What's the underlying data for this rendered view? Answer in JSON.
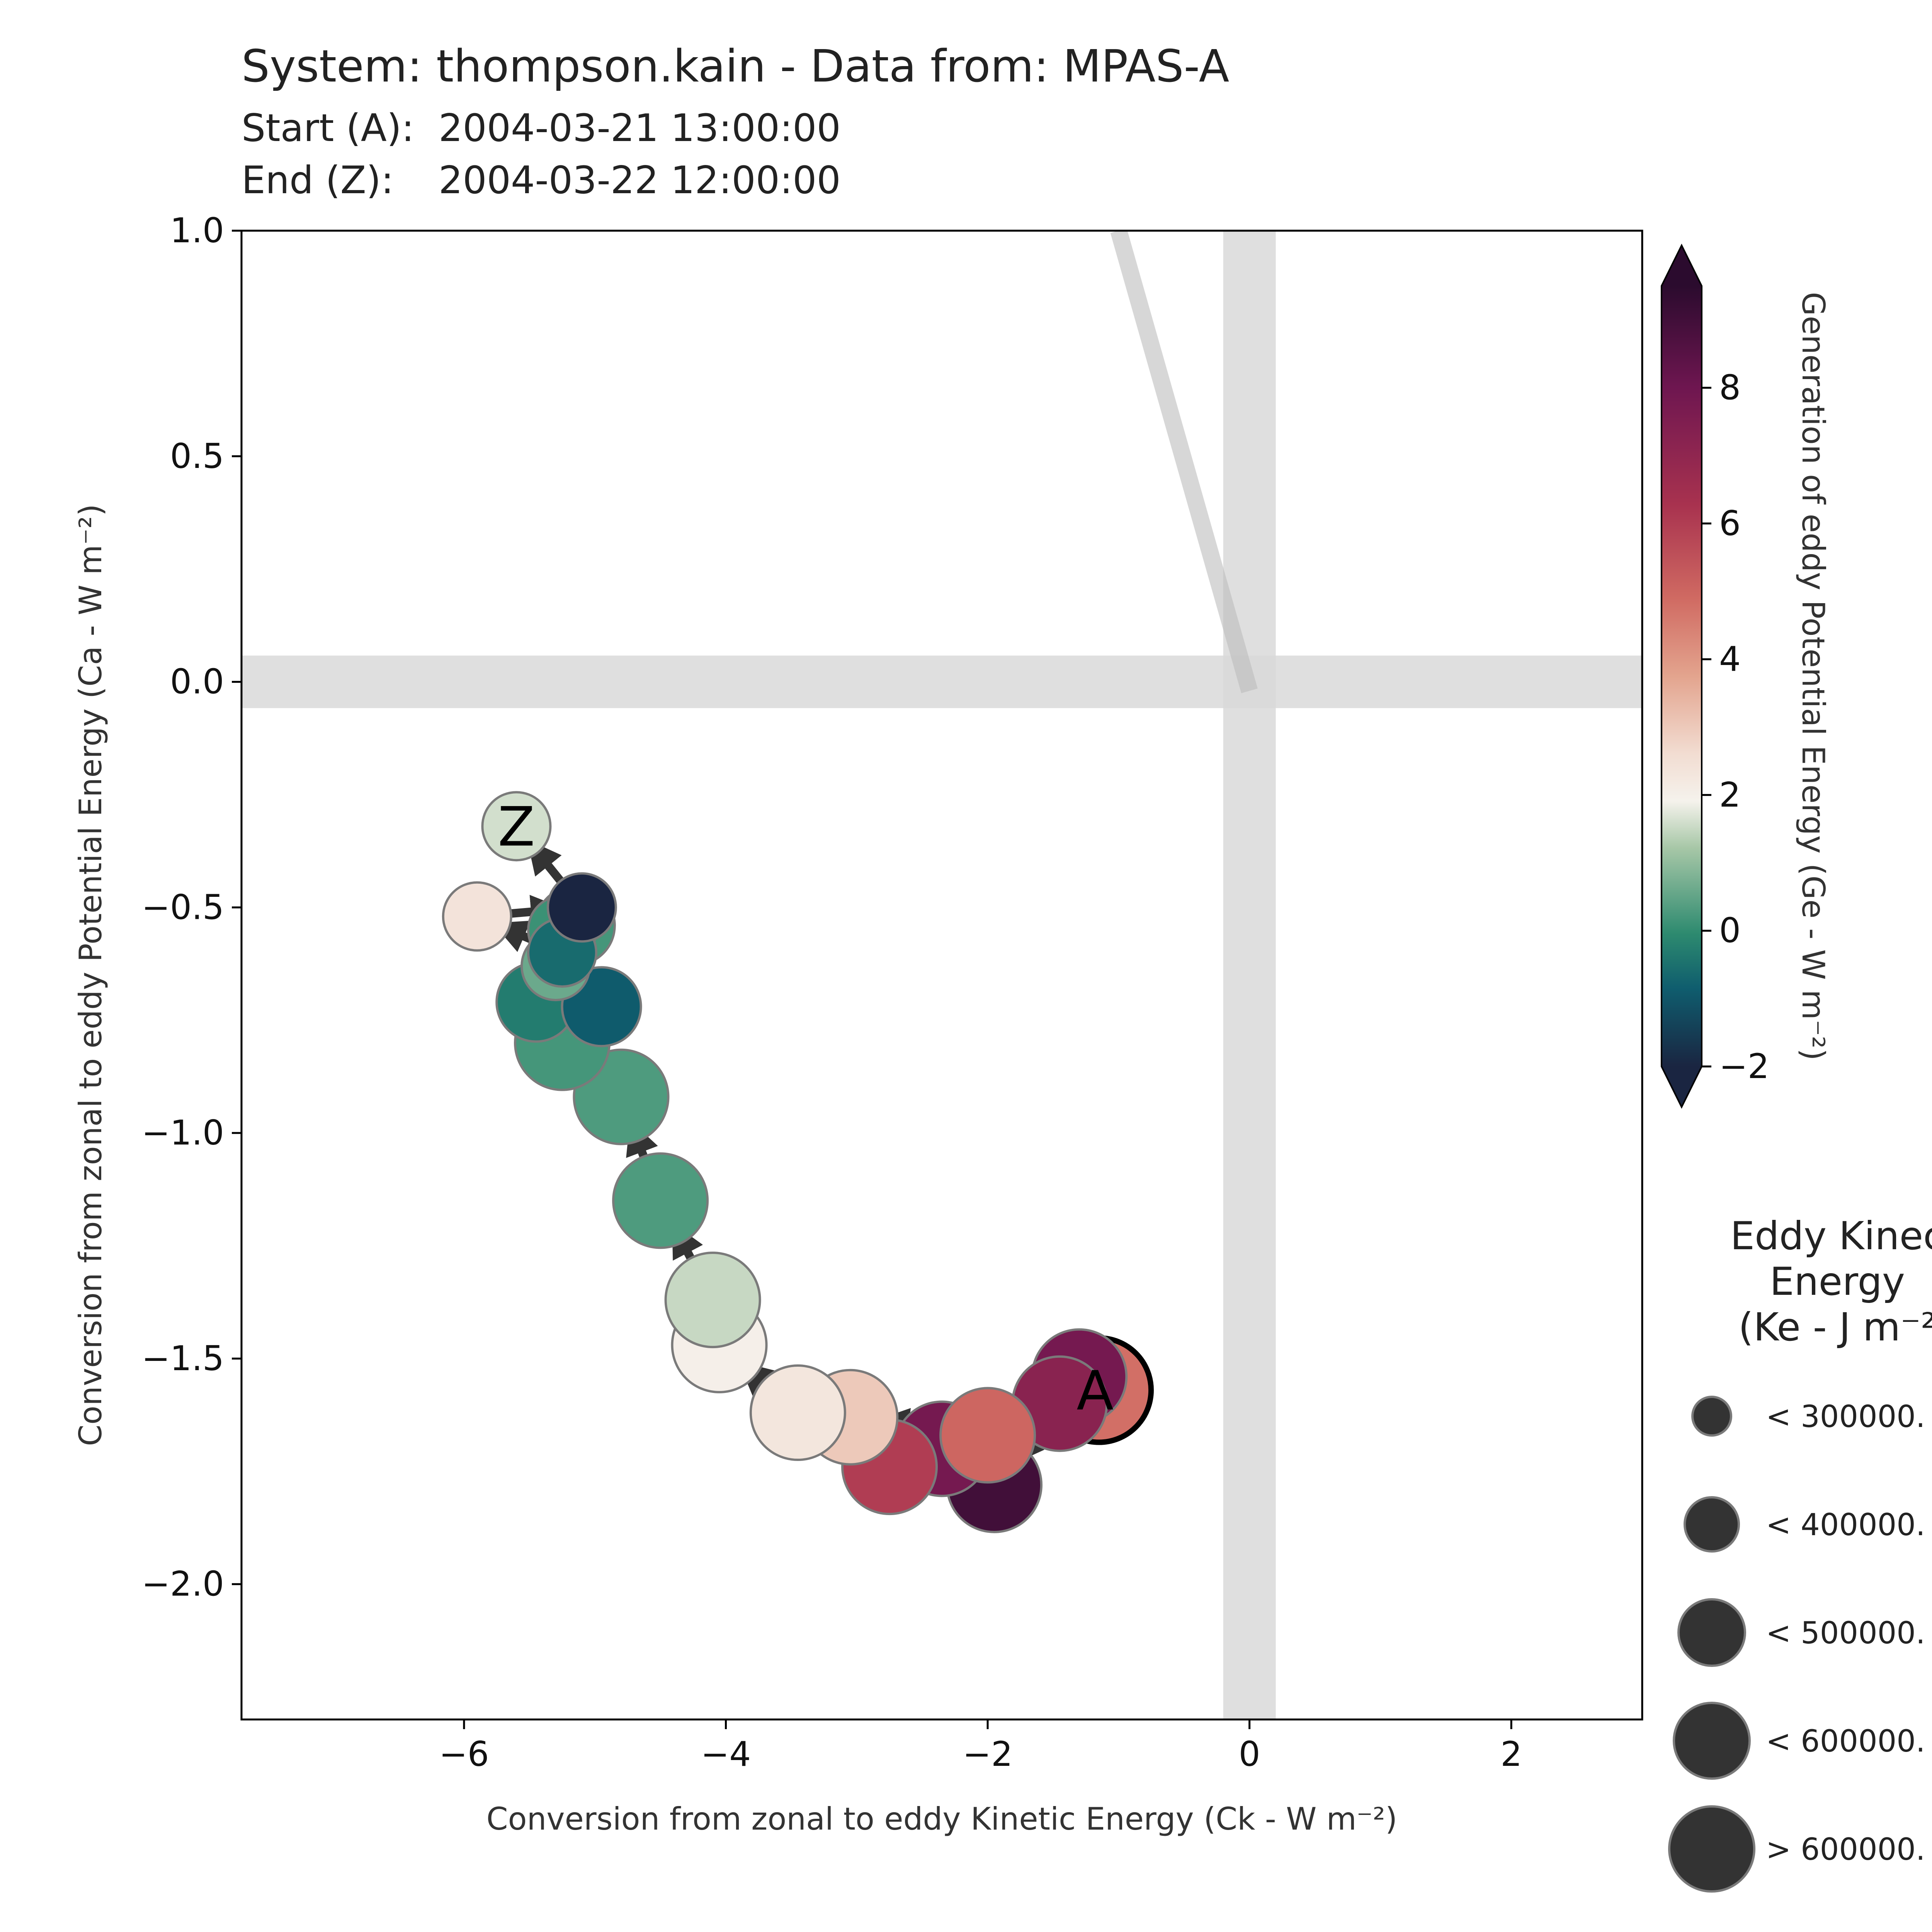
{
  "header": {
    "title": "System: thompson.kain - Data from: MPAS-A",
    "start_label": "Start (A):",
    "start_value": "2004-03-21 13:00:00",
    "end_label": "End (Z):",
    "end_value": "2004-03-22 12:00:00"
  },
  "chart_data": {
    "type": "scatter",
    "xlabel": "Conversion from zonal to eddy Kinetic Energy (Ck -  W m⁻²)",
    "ylabel": "Conversion from zonal to eddy Potential Energy (Ca -  W m⁻²)",
    "xlim": [
      -7.7,
      3.0
    ],
    "ylim": [
      -2.3,
      1.0
    ],
    "xticks": [
      -6,
      -4,
      -2,
      0,
      2
    ],
    "xtick_labels": [
      "−6",
      "−4",
      "−2",
      "0",
      "2"
    ],
    "yticks": [
      1.0,
      0.5,
      0.0,
      -0.5,
      -1.0,
      -1.5,
      -2.0
    ],
    "ytick_labels": [
      "1.0",
      "0.5",
      "0.0",
      "−0.5",
      "−1.0",
      "−1.5",
      "−2.0"
    ],
    "reference_bands": {
      "x": 0,
      "y": 0
    },
    "trend_line": {
      "x": [
        -1.0,
        0.0
      ],
      "y": [
        1.0,
        -0.02
      ]
    },
    "start_marker": "A",
    "end_marker": "Z",
    "points": [
      {
        "x": -1.15,
        "y": -1.57,
        "ge": 4.8,
        "size_class": 4
      },
      {
        "x": -1.3,
        "y": -1.54,
        "ge": 7.8,
        "size_class": 3
      },
      {
        "x": -1.45,
        "y": -1.6,
        "ge": 7.2,
        "size_class": 3
      },
      {
        "x": -1.95,
        "y": -1.78,
        "ge": 9.0,
        "size_class": 3
      },
      {
        "x": -2.35,
        "y": -1.7,
        "ge": 7.8,
        "size_class": 3
      },
      {
        "x": -2.75,
        "y": -1.74,
        "ge": 6.0,
        "size_class": 3
      },
      {
        "x": -2.0,
        "y": -1.67,
        "ge": 5.0,
        "size_class": 3
      },
      {
        "x": -3.05,
        "y": -1.63,
        "ge": 3.0,
        "size_class": 3
      },
      {
        "x": -3.45,
        "y": -1.62,
        "ge": 2.3,
        "size_class": 3
      },
      {
        "x": -4.05,
        "y": -1.47,
        "ge": 2.0,
        "size_class": 3
      },
      {
        "x": -4.1,
        "y": -1.37,
        "ge": 1.5,
        "size_class": 3
      },
      {
        "x": -4.5,
        "y": -1.15,
        "ge": 0.3,
        "size_class": 3
      },
      {
        "x": -4.8,
        "y": -0.92,
        "ge": 0.3,
        "size_class": 3
      },
      {
        "x": -5.25,
        "y": -0.8,
        "ge": 0.2,
        "size_class": 3
      },
      {
        "x": -5.45,
        "y": -0.71,
        "ge": -0.3,
        "size_class": 2
      },
      {
        "x": -4.95,
        "y": -0.72,
        "ge": -0.9,
        "size_class": 2
      },
      {
        "x": -5.3,
        "y": -0.63,
        "ge": 0.6,
        "size_class": 1
      },
      {
        "x": -5.15,
        "y": -0.54,
        "ge": 0.2,
        "size_class": 2
      },
      {
        "x": -5.25,
        "y": -0.55,
        "ge": 0.1,
        "size_class": 1
      },
      {
        "x": -5.25,
        "y": -0.6,
        "ge": -0.6,
        "size_class": 1
      },
      {
        "x": -5.9,
        "y": -0.52,
        "ge": 2.4,
        "size_class": 1
      },
      {
        "x": -5.1,
        "y": -0.5,
        "ge": -2.0,
        "size_class": 1
      },
      {
        "x": -5.6,
        "y": -0.32,
        "ge": 1.6,
        "size_class": 1
      }
    ],
    "colorbar": {
      "label": "Generation of eddy Potential Energy (Ge -  W m⁻²)",
      "range": [
        -2,
        9.5
      ],
      "ticks": [
        8,
        6,
        4,
        2,
        0,
        -2
      ],
      "tick_labels": [
        "8",
        "6",
        "4",
        "2",
        "0",
        "−2"
      ],
      "extend": "both"
    },
    "size_legend": {
      "title": "Eddy Kinec\nEnergy\n(Ke -  J m⁻²",
      "items": [
        "< 300000.",
        "< 400000.",
        "< 500000.",
        "< 600000.",
        "> 600000."
      ]
    },
    "colors": {
      "band": "#d9d9d9",
      "arrow": "#333333",
      "marker_edge": "#7a7a7a",
      "start_edge": "#000000"
    },
    "grid": false
  }
}
